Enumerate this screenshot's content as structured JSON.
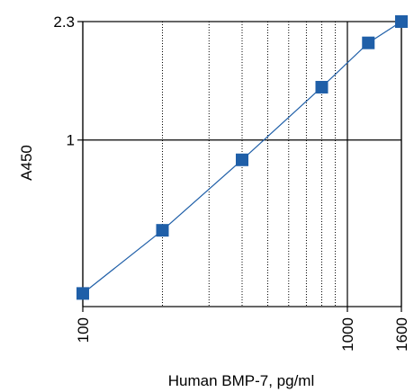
{
  "chart_data": {
    "type": "line",
    "title": "",
    "xlabel": "Human BMP-7,  pg/ml",
    "ylabel": "A450",
    "x_scale": "log",
    "y_scale": "log",
    "xlim": [
      100,
      1600
    ],
    "ylim": [
      0.31,
      2.3
    ],
    "x_ticks": [
      {
        "value": 100,
        "label": "100"
      },
      {
        "value": 1000,
        "label": "1000"
      },
      {
        "value": 1600,
        "label": "1600"
      }
    ],
    "y_ticks": [
      {
        "value": 2.3,
        "label": "2.3"
      },
      {
        "value": 1,
        "label": "1"
      }
    ],
    "x_minor_gridlines": [
      200,
      300,
      400,
      500,
      600,
      700,
      800,
      900
    ],
    "y_gridlines": [
      1
    ],
    "grid": true,
    "series": [
      {
        "color": "#1f5fa8",
        "marker": "square",
        "x": [
          100,
          200,
          400,
          800,
          1200,
          1600
        ],
        "y": [
          0.34,
          0.53,
          0.87,
          1.45,
          1.98,
          2.3
        ]
      }
    ]
  }
}
